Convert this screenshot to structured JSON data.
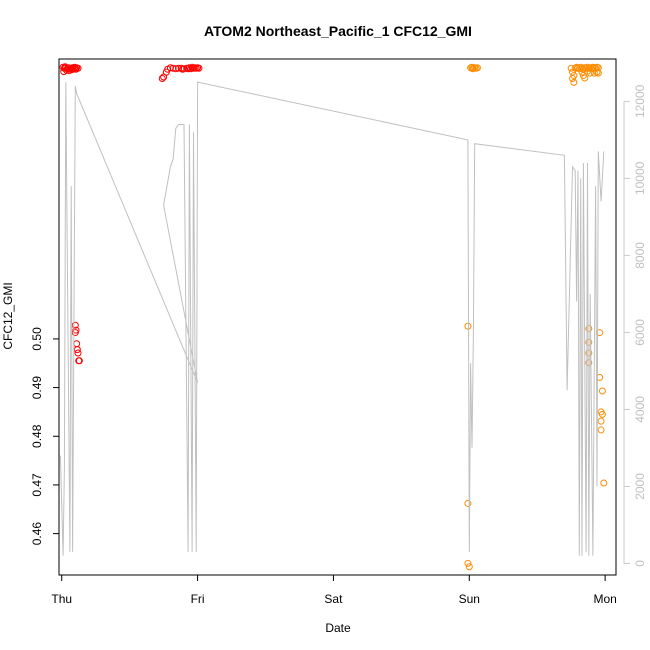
{
  "chart_data": {
    "type": "scatter",
    "title": "ATOM2 Northeast_Pacific_1 CFC12_GMI",
    "xlabel": "Date",
    "ylabel": "CFC12_GMI",
    "x_ticks": [
      "Thu",
      "Fri",
      "Sat",
      "Sun",
      "Mon"
    ],
    "xlim": [
      -0.02,
      4.08
    ],
    "ylim": [
      0.4515,
      0.5575
    ],
    "y_ticks": [
      "0.46",
      "0.47",
      "0.48",
      "0.49",
      "0.50"
    ],
    "y2lim": [
      -300,
      13100
    ],
    "y2_ticks": [
      "0",
      "2000",
      "4000",
      "6000",
      "8000",
      "10000",
      "12000"
    ],
    "grid": false,
    "series": [
      {
        "color": "#ff0000",
        "marker": "open-circle",
        "points": [
          [
            0.01,
            0.5558
          ],
          [
            0.02,
            0.5556
          ],
          [
            0.03,
            0.5557
          ],
          [
            0.04,
            0.5555
          ],
          [
            0.05,
            0.5557
          ],
          [
            0.06,
            0.5554
          ],
          [
            0.07,
            0.5556
          ],
          [
            0.08,
            0.5557
          ],
          [
            0.09,
            0.5555
          ],
          [
            0.1,
            0.5556
          ],
          [
            0.11,
            0.5557
          ],
          [
            0.015,
            0.5549
          ],
          [
            0.035,
            0.5552
          ],
          [
            0.055,
            0.5551
          ],
          [
            0.025,
            0.5559
          ],
          [
            0.075,
            0.5553
          ],
          [
            0.095,
            0.5558
          ],
          [
            0.105,
            0.5554
          ],
          [
            0.12,
            0.5556
          ],
          [
            0.1,
            0.5028
          ],
          [
            0.105,
            0.5018
          ],
          [
            0.1,
            0.5013
          ],
          [
            0.11,
            0.499
          ],
          [
            0.115,
            0.4978
          ],
          [
            0.12,
            0.4971
          ],
          [
            0.125,
            0.4955
          ],
          [
            0.13,
            0.4955
          ],
          [
            0.74,
            0.5535
          ],
          [
            0.75,
            0.5538
          ],
          [
            0.77,
            0.5548
          ],
          [
            0.78,
            0.5554
          ],
          [
            0.8,
            0.5557
          ],
          [
            0.82,
            0.5556
          ],
          [
            0.84,
            0.5555
          ],
          [
            0.86,
            0.5556
          ],
          [
            0.88,
            0.5556
          ],
          [
            0.9,
            0.5555
          ],
          [
            0.92,
            0.5556
          ],
          [
            0.94,
            0.5557
          ],
          [
            0.95,
            0.5555
          ],
          [
            0.96,
            0.5558
          ],
          [
            0.97,
            0.5556
          ],
          [
            0.98,
            0.5557
          ],
          [
            0.99,
            0.5556
          ],
          [
            1.0,
            0.5557
          ],
          [
            1.01,
            0.5556
          ],
          [
            0.89,
            0.5554
          ],
          [
            0.93,
            0.5555
          ]
        ]
      },
      {
        "color": "#ff8c00",
        "marker": "open-circle",
        "points": [
          [
            3.01,
            0.5557
          ],
          [
            3.02,
            0.5558
          ],
          [
            3.03,
            0.5556
          ],
          [
            3.04,
            0.5557
          ],
          [
            3.05,
            0.5556
          ],
          [
            3.06,
            0.5557
          ],
          [
            3.025,
            0.5555
          ],
          [
            2.99,
            0.5026
          ],
          [
            2.99,
            0.4662
          ],
          [
            2.99,
            0.4539
          ],
          [
            3.0,
            0.4532
          ],
          [
            3.75,
            0.5556
          ],
          [
            3.76,
            0.5548
          ],
          [
            3.77,
            0.5541
          ],
          [
            3.76,
            0.5535
          ],
          [
            3.77,
            0.5527
          ],
          [
            3.78,
            0.5556
          ],
          [
            3.79,
            0.5558
          ],
          [
            3.8,
            0.5557
          ],
          [
            3.81,
            0.5555
          ],
          [
            3.82,
            0.5558
          ],
          [
            3.83,
            0.5556
          ],
          [
            3.84,
            0.5554
          ],
          [
            3.85,
            0.5557
          ],
          [
            3.86,
            0.5556
          ],
          [
            3.87,
            0.5558
          ],
          [
            3.88,
            0.5556
          ],
          [
            3.89,
            0.5557
          ],
          [
            3.9,
            0.5555
          ],
          [
            3.91,
            0.5558
          ],
          [
            3.92,
            0.5557
          ],
          [
            3.93,
            0.5556
          ],
          [
            3.94,
            0.5558
          ],
          [
            3.95,
            0.5557
          ],
          [
            3.83,
            0.5548
          ],
          [
            3.84,
            0.5541
          ],
          [
            3.85,
            0.5536
          ],
          [
            3.87,
            0.555
          ],
          [
            3.89,
            0.5546
          ],
          [
            3.92,
            0.5546
          ],
          [
            3.94,
            0.5548
          ],
          [
            3.95,
            0.5546
          ],
          [
            3.88,
            0.5021
          ],
          [
            3.88,
            0.4993
          ],
          [
            3.88,
            0.4971
          ],
          [
            3.88,
            0.4951
          ],
          [
            3.96,
            0.5013
          ],
          [
            3.96,
            0.4921
          ],
          [
            3.98,
            0.4893
          ],
          [
            3.97,
            0.485
          ],
          [
            3.98,
            0.4845
          ],
          [
            3.97,
            0.4831
          ],
          [
            3.97,
            0.4813
          ],
          [
            3.99,
            0.4704
          ]
        ]
      },
      {
        "axis": "right",
        "color": "#c0c0c0",
        "line": true,
        "points": [
          [
            -0.01,
            2800
          ],
          [
            0.01,
            200
          ],
          [
            0.02,
            2500
          ],
          [
            0.03,
            12500
          ],
          [
            0.06,
            300
          ],
          [
            0.07,
            9800
          ],
          [
            0.08,
            300
          ],
          [
            0.1,
            12400
          ],
          [
            0.11,
            12200
          ],
          [
            1.0,
            4700
          ],
          [
            0.75,
            9300
          ],
          [
            0.8,
            10300
          ],
          [
            0.82,
            10500
          ],
          [
            0.84,
            11300
          ],
          [
            0.86,
            11400
          ],
          [
            0.9,
            11400
          ],
          [
            0.93,
            300
          ],
          [
            0.94,
            11400
          ],
          [
            0.96,
            300
          ],
          [
            0.97,
            11200
          ],
          [
            0.99,
            300
          ],
          [
            1.0,
            12500
          ],
          [
            2.99,
            11000
          ],
          [
            3.0,
            300
          ],
          [
            3.01,
            5200
          ],
          [
            3.02,
            3000
          ],
          [
            3.03,
            6000
          ],
          [
            3.04,
            10900
          ],
          [
            3.7,
            10600
          ],
          [
            3.72,
            4500
          ],
          [
            3.76,
            10300
          ],
          [
            3.78,
            10200
          ],
          [
            3.79,
            6800
          ],
          [
            3.8,
            10200
          ],
          [
            3.81,
            200
          ],
          [
            3.82,
            10000
          ],
          [
            3.83,
            200
          ],
          [
            3.84,
            10400
          ],
          [
            3.86,
            300
          ],
          [
            3.87,
            10400
          ],
          [
            3.88,
            200
          ],
          [
            3.89,
            7000
          ],
          [
            3.91,
            200
          ],
          [
            3.93,
            9800
          ],
          [
            3.94,
            2000
          ],
          [
            3.95,
            10700
          ],
          [
            3.97,
            9400
          ],
          [
            3.99,
            10700
          ]
        ]
      }
    ]
  }
}
